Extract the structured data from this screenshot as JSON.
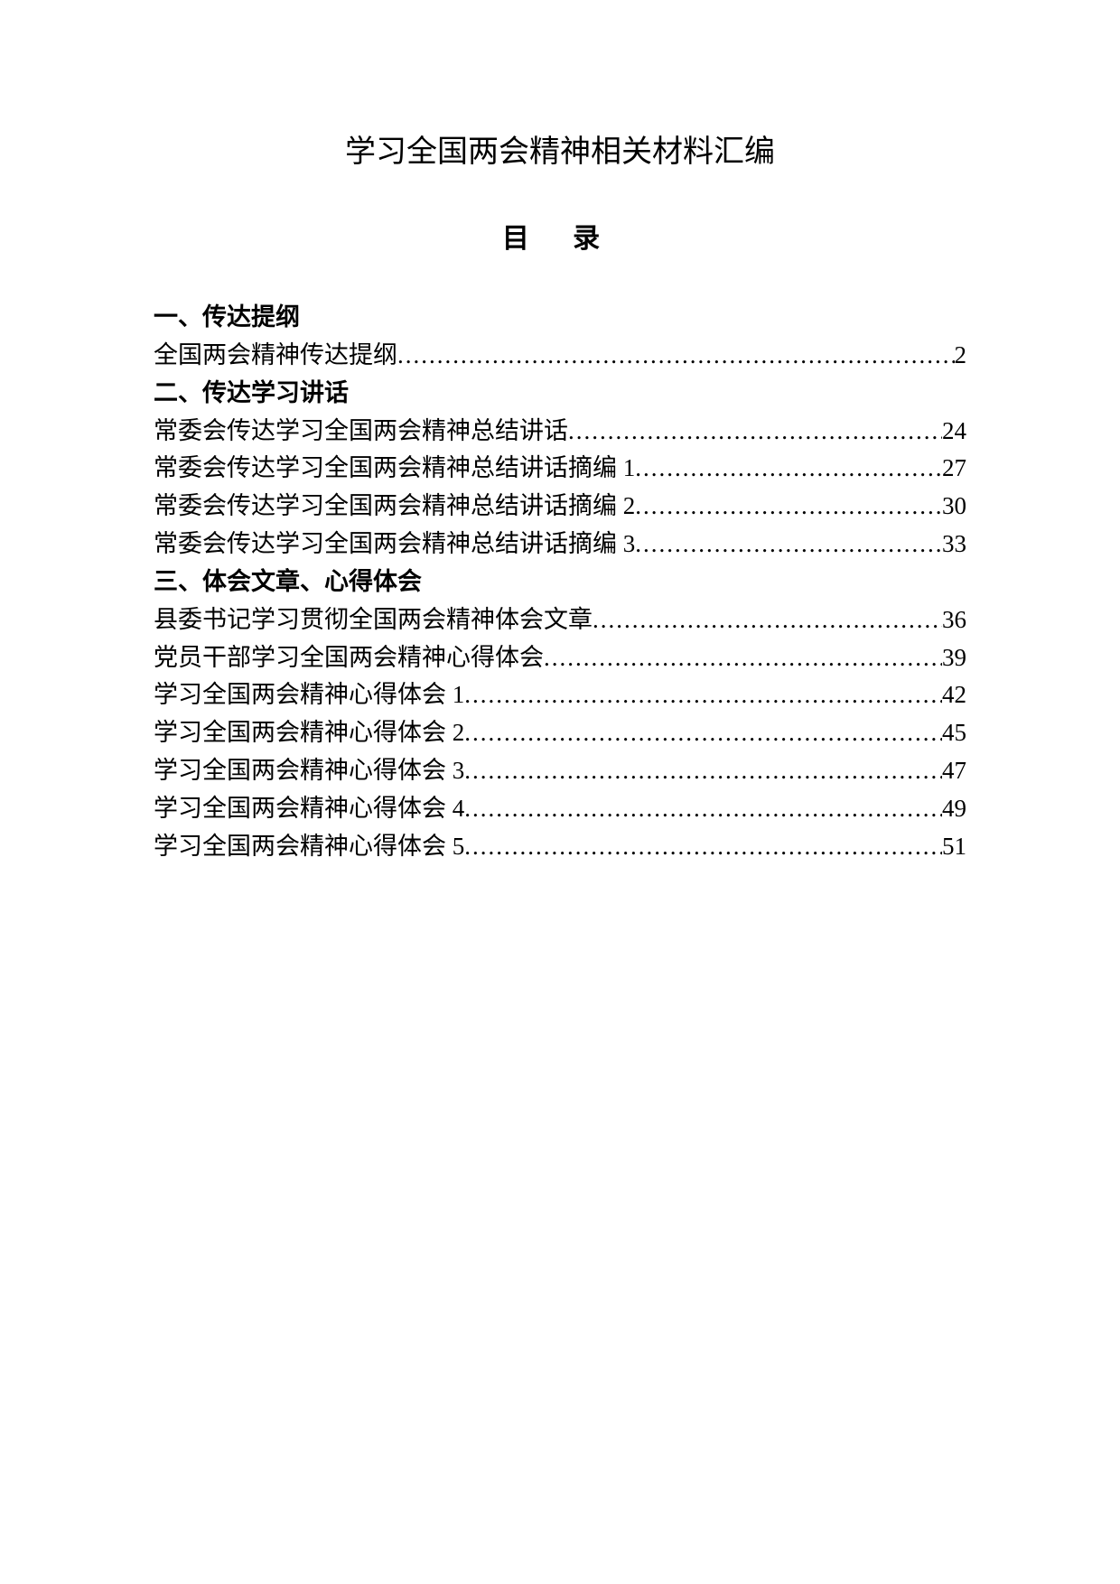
{
  "title": "学习全国两会精神相关材料汇编",
  "toc_heading": "目 录",
  "sections": [
    {
      "header": "一、传达提纲",
      "entries": [
        {
          "title": "全国两会精神传达提纲",
          "page": "2"
        }
      ]
    },
    {
      "header": "二、传达学习讲话",
      "entries": [
        {
          "title": "常委会传达学习全国两会精神总结讲话",
          "page": "24"
        },
        {
          "title": "常委会传达学习全国两会精神总结讲话摘编 1",
          "page": "27"
        },
        {
          "title": "常委会传达学习全国两会精神总结讲话摘编 2",
          "page": "30"
        },
        {
          "title": "常委会传达学习全国两会精神总结讲话摘编 3",
          "page": "33"
        }
      ]
    },
    {
      "header": "三、体会文章、心得体会",
      "entries": [
        {
          "title": "县委书记学习贯彻全国两会精神体会文章",
          "page": "36"
        },
        {
          "title": "党员干部学习全国两会精神心得体会",
          "page": "39"
        },
        {
          "title": "学习全国两会精神心得体会 1",
          "page": "42"
        },
        {
          "title": "学习全国两会精神心得体会 2",
          "page": "45"
        },
        {
          "title": "学习全国两会精神心得体会 3",
          "page": "47"
        },
        {
          "title": "学习全国两会精神心得体会 4",
          "page": "49"
        },
        {
          "title": "学习全国两会精神心得体会 5",
          "page": "51"
        }
      ]
    }
  ]
}
